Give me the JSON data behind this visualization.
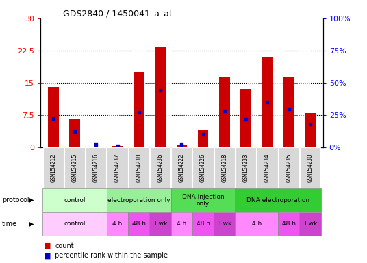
{
  "title": "GDS2840 / 1450041_a_at",
  "samples": [
    "GSM154212",
    "GSM154215",
    "GSM154216",
    "GSM154237",
    "GSM154238",
    "GSM154236",
    "GSM154222",
    "GSM154226",
    "GSM154218",
    "GSM154233",
    "GSM154234",
    "GSM154235",
    "GSM154230"
  ],
  "count_values": [
    14.0,
    6.5,
    0.2,
    0.3,
    17.5,
    23.5,
    0.5,
    4.0,
    16.5,
    13.5,
    21.0,
    16.5,
    8.0
  ],
  "percentile_values": [
    22.5,
    12.0,
    2.0,
    1.0,
    27.0,
    44.0,
    2.0,
    10.0,
    28.0,
    22.0,
    35.0,
    30.0,
    18.0
  ],
  "ylim_left": [
    0,
    30
  ],
  "ylim_right": [
    0,
    100
  ],
  "yticks_left": [
    0,
    7.5,
    15,
    22.5,
    30
  ],
  "yticks_right": [
    0,
    25,
    50,
    75,
    100
  ],
  "bar_color": "#cc0000",
  "percentile_color": "#0000cc",
  "bar_width": 0.5,
  "protocol_groups": [
    {
      "label": "control",
      "start": 0,
      "end": 3,
      "color": "#ccffcc"
    },
    {
      "label": "electroporation only",
      "start": 3,
      "end": 6,
      "color": "#99ee99"
    },
    {
      "label": "DNA injection\nonly",
      "start": 6,
      "end": 9,
      "color": "#55dd55"
    },
    {
      "label": "DNA electroporation",
      "start": 9,
      "end": 13,
      "color": "#33cc33"
    }
  ],
  "time_cells": [
    {
      "label": "control",
      "start": 0,
      "end": 3,
      "color": "#ffccff"
    },
    {
      "label": "4 h",
      "start": 3,
      "end": 4,
      "color": "#ff88ff"
    },
    {
      "label": "48 h",
      "start": 4,
      "end": 5,
      "color": "#ee55ee"
    },
    {
      "label": "3 wk",
      "start": 5,
      "end": 6,
      "color": "#cc44cc"
    },
    {
      "label": "4 h",
      "start": 6,
      "end": 7,
      "color": "#ff88ff"
    },
    {
      "label": "48 h",
      "start": 7,
      "end": 8,
      "color": "#ee55ee"
    },
    {
      "label": "3 wk",
      "start": 8,
      "end": 9,
      "color": "#cc44cc"
    },
    {
      "label": "4 h",
      "start": 9,
      "end": 11,
      "color": "#ff88ff"
    },
    {
      "label": "48 h",
      "start": 11,
      "end": 12,
      "color": "#ee55ee"
    },
    {
      "label": "3 wk",
      "start": 12,
      "end": 13,
      "color": "#cc44cc"
    }
  ],
  "background_color": "#ffffff",
  "plot_bg_color": "#ffffff",
  "label_bg": "#d8d8d8",
  "ytick_label_left": [
    "0",
    "7.5",
    "15",
    "22.5",
    "30"
  ],
  "ytick_label_right": [
    "0%",
    "25%",
    "50%",
    "75%",
    "100%"
  ]
}
